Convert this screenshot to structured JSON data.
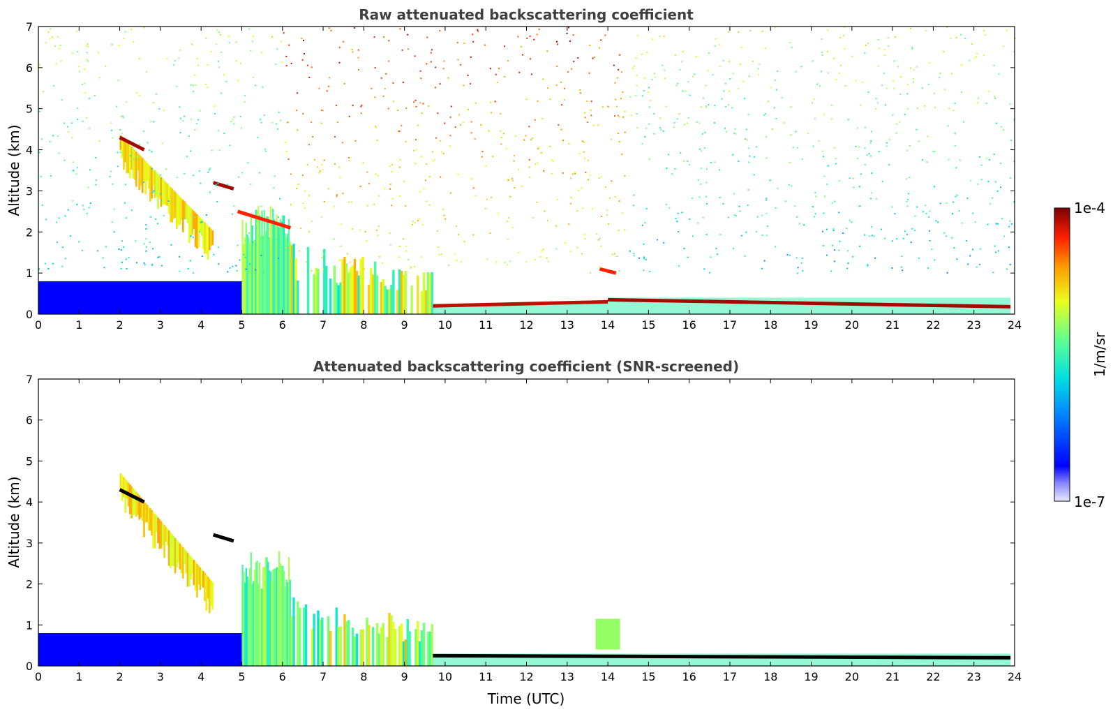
{
  "chart_data": [
    {
      "type": "heatmap",
      "title": "Raw attenuated backscattering coefficient",
      "xlabel": "",
      "ylabel": "Altitude (km)",
      "xlim": [
        0,
        24
      ],
      "ylim": [
        0,
        7
      ],
      "x_ticks": [
        "0",
        "1",
        "2",
        "3",
        "4",
        "5",
        "6",
        "7",
        "8",
        "9",
        "10",
        "11",
        "12",
        "13",
        "14",
        "15",
        "16",
        "17",
        "18",
        "19",
        "20",
        "21",
        "22",
        "23",
        "24"
      ],
      "y_ticks": [
        "0",
        "1",
        "2",
        "3",
        "4",
        "5",
        "6",
        "7"
      ],
      "grid": false,
      "features": [
        {
          "kind": "cirrus_layer",
          "x": [
            2.0,
            4.3
          ],
          "top_km": [
            4.35,
            2.0
          ],
          "thickness_km": 0.45,
          "strength": 0.72
        },
        {
          "kind": "cloud_top_line",
          "x": [
            2.0,
            2.6
          ],
          "y": [
            4.3,
            4.0
          ],
          "strength": 0.97
        },
        {
          "kind": "cloud_top_line",
          "x": [
            4.3,
            4.8
          ],
          "y": [
            3.2,
            3.05
          ],
          "strength": 0.97
        },
        {
          "kind": "convective_column",
          "x": [
            5.0,
            6.2
          ],
          "top_km": 2.4,
          "strength": 0.55
        },
        {
          "kind": "cloud_top_line",
          "x": [
            4.9,
            6.2
          ],
          "y": [
            2.5,
            2.1
          ],
          "strength": 0.9
        },
        {
          "kind": "broken_low_cloud",
          "x": [
            6.2,
            9.7
          ],
          "top_km": [
            1.6,
            1.0
          ],
          "strength": 0.6
        },
        {
          "kind": "boundary_layer_top",
          "x": [
            9.7,
            14.0
          ],
          "y": [
            0.2,
            0.3
          ],
          "strength": 0.95
        },
        {
          "kind": "cloud_top_line",
          "x": [
            13.8,
            14.2
          ],
          "y": [
            1.1,
            1.0
          ],
          "strength": 0.9
        },
        {
          "kind": "boundary_layer_top",
          "x": [
            14.0,
            23.9
          ],
          "y": [
            0.35,
            0.18
          ],
          "strength": 0.97
        },
        {
          "kind": "aerosol_layer",
          "x": [
            0.0,
            5.0
          ],
          "top_km": 0.8,
          "strength": 0.12
        },
        {
          "kind": "background_noise",
          "x": [
            0.0,
            24.0
          ],
          "y": [
            1.0,
            7.0
          ],
          "strength": 0.5,
          "note_level": "high aloft during day (6-14 UTC)"
        }
      ]
    },
    {
      "type": "heatmap",
      "title": "Attenuated backscattering coefficient (SNR-screened)",
      "xlabel": "Time (UTC)",
      "ylabel": "Altitude (km)",
      "xlim": [
        0,
        24
      ],
      "ylim": [
        0,
        7
      ],
      "x_ticks": [
        "0",
        "1",
        "2",
        "3",
        "4",
        "5",
        "6",
        "7",
        "8",
        "9",
        "10",
        "11",
        "12",
        "13",
        "14",
        "15",
        "16",
        "17",
        "18",
        "19",
        "20",
        "21",
        "22",
        "23",
        "24"
      ],
      "y_ticks": [
        "0",
        "1",
        "2",
        "3",
        "4",
        "5",
        "6",
        "7"
      ],
      "grid": false,
      "features": [
        {
          "kind": "cirrus_layer",
          "x": [
            2.0,
            4.3
          ],
          "top_km": [
            4.7,
            2.0
          ],
          "thickness_km": 0.45,
          "strength": 0.72
        },
        {
          "kind": "cloud_top_line",
          "x": [
            2.0,
            2.6
          ],
          "y": [
            4.3,
            4.0
          ],
          "strength": 1.0,
          "color": "black"
        },
        {
          "kind": "cloud_top_line",
          "x": [
            4.3,
            4.8
          ],
          "y": [
            3.2,
            3.05
          ],
          "strength": 1.0,
          "color": "black"
        },
        {
          "kind": "convective_column",
          "x": [
            5.0,
            6.2
          ],
          "top_km": 2.6,
          "strength": 0.55
        },
        {
          "kind": "broken_low_cloud",
          "x": [
            6.2,
            9.7
          ],
          "top_km": [
            1.6,
            1.0
          ],
          "strength": 0.6
        },
        {
          "kind": "boundary_layer_top",
          "x": [
            9.7,
            23.9
          ],
          "y": [
            0.25,
            0.2
          ],
          "strength": 1.0,
          "color": "black"
        },
        {
          "kind": "aerosol_layer",
          "x": [
            0.0,
            5.0
          ],
          "top_km": 0.8,
          "strength": 0.12
        },
        {
          "kind": "isolated_cloud",
          "x": [
            13.7,
            14.3
          ],
          "y": [
            0.4,
            1.15
          ],
          "strength": 0.6
        }
      ]
    }
  ],
  "colorbar": {
    "label": "1/m/sr",
    "max_label": "1e-4",
    "min_label": "1e-7",
    "scale": "log",
    "colormap": "jet"
  },
  "colors": {
    "title": "#404040",
    "axis": "#000000",
    "background": "#ffffff"
  }
}
